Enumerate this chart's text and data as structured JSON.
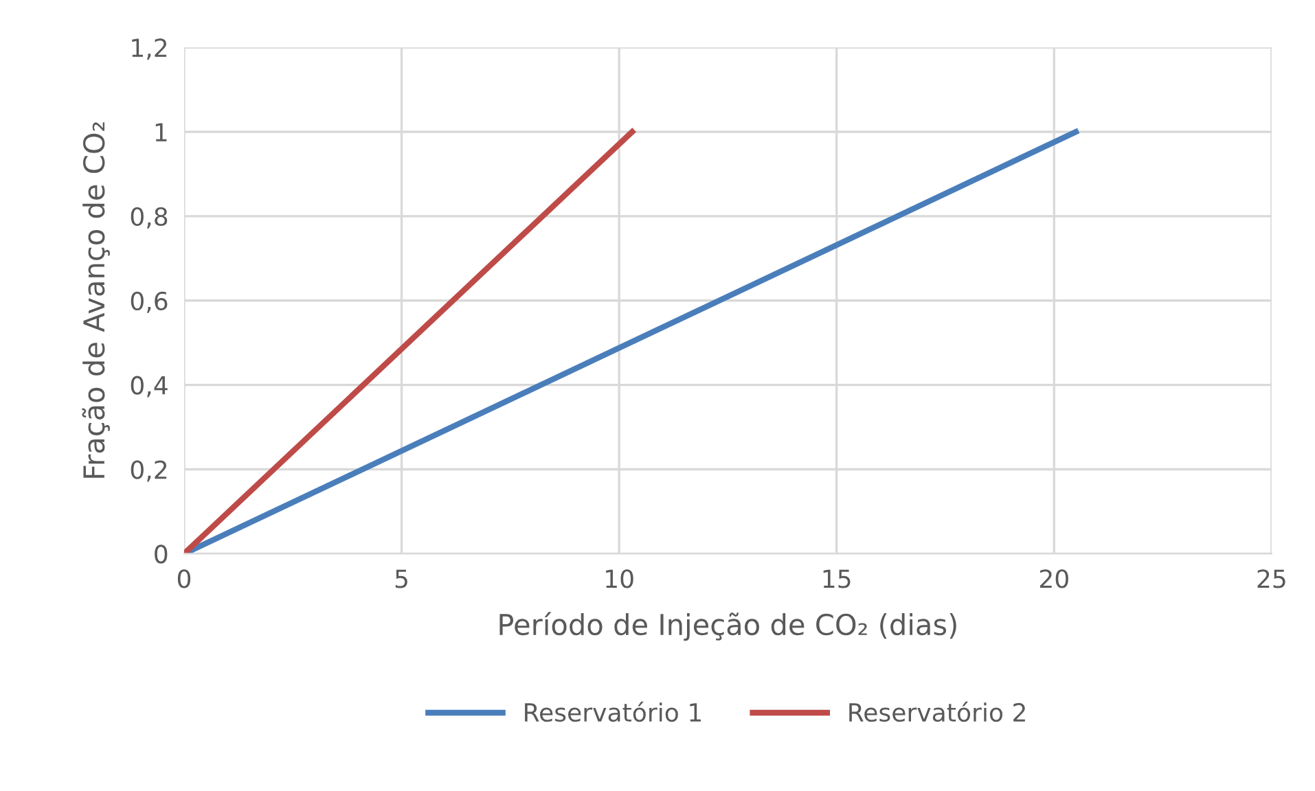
{
  "chart_data": {
    "type": "line",
    "xlabel": "Período de Injeção de CO₂ (dias)",
    "ylabel": "Fração de Avanço de CO₂",
    "series": [
      {
        "name": "Reservatório 1",
        "color": "#4a7ebb",
        "x": [
          0,
          20.5
        ],
        "values": [
          0,
          1
        ]
      },
      {
        "name": "Reservatório 2",
        "color": "#be4b48",
        "x": [
          0,
          10.3
        ],
        "values": [
          0,
          1
        ]
      }
    ],
    "xlim": [
      0,
      25
    ],
    "xticks": [
      0,
      5,
      10,
      15,
      20,
      25
    ],
    "ylim": [
      0,
      1.2
    ],
    "yticks": [
      {
        "value": 0,
        "label": "0"
      },
      {
        "value": 0.2,
        "label": "0,2"
      },
      {
        "value": 0.4,
        "label": "0,4"
      },
      {
        "value": 0.6,
        "label": "0,6"
      },
      {
        "value": 0.8,
        "label": "0,8"
      },
      {
        "value": 1,
        "label": "1"
      },
      {
        "value": 1.2,
        "label": "1,2"
      }
    ],
    "grid": true,
    "legend": "bottom",
    "line_style": "solid",
    "marker": "none"
  }
}
